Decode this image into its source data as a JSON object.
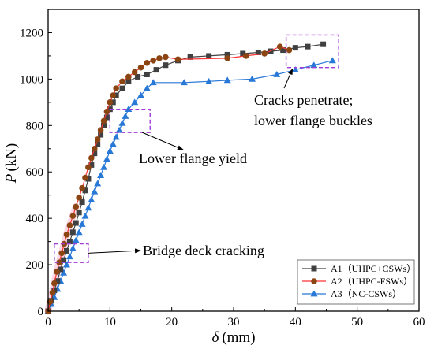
{
  "chart_data": {
    "type": "line",
    "xlabel": "δ (mm)",
    "xlabel_var": "δ",
    "xlabel_unit": "(mm)",
    "ylabel": "P (kN)",
    "ylabel_var": "P",
    "ylabel_unit": "(kN)",
    "xlim": [
      0,
      60
    ],
    "ylim": [
      0,
      1300
    ],
    "xticks": [
      0,
      10,
      20,
      30,
      40,
      50,
      60
    ],
    "yticks": [
      0,
      200,
      400,
      600,
      800,
      1000,
      1200
    ],
    "grid": false,
    "legend_position": "bottom-right",
    "series": [
      {
        "name": "A1（UHPC+CSWs）",
        "color": "#404040",
        "marker": "square",
        "x": [
          0,
          0.5,
          1.0,
          1.5,
          2.0,
          2.5,
          3.0,
          3.5,
          4.0,
          4.5,
          5.0,
          5.5,
          6.0,
          6.5,
          7.0,
          7.5,
          8.0,
          8.5,
          9.0,
          9.5,
          10.0,
          10.5,
          11.0,
          12.0,
          13.0,
          14.5,
          16.0,
          17.5,
          19.0,
          21.0,
          23.0,
          26.0,
          29.0,
          31.5,
          34.0,
          36.0,
          38.0,
          40.0,
          42.0,
          44.5
        ],
        "y": [
          0,
          45,
          90,
          130,
          180,
          220,
          260,
          300,
          340,
          380,
          425,
          470,
          520,
          570,
          630,
          680,
          720,
          760,
          800,
          835,
          870,
          900,
          930,
          960,
          990,
          1010,
          1020,
          1040,
          1060,
          1080,
          1095,
          1100,
          1105,
          1110,
          1115,
          1120,
          1125,
          1135,
          1140,
          1150
        ]
      },
      {
        "name": "A2（UHPC-FSWs）",
        "color": "#8B4513",
        "line_color": "#ff3333",
        "marker": "circle",
        "x": [
          0,
          0.3,
          0.7,
          1.0,
          1.4,
          1.8,
          2.2,
          2.6,
          3.0,
          3.5,
          4.0,
          4.5,
          5.0,
          5.5,
          6.0,
          6.5,
          7.0,
          7.5,
          8.0,
          8.5,
          9.0,
          9.5,
          10.0,
          10.5,
          11.0,
          12.0,
          13.0,
          14.0,
          15.0,
          16.0,
          17.0,
          18.0,
          19.0,
          21.0,
          29.0,
          32.0,
          35.0,
          37.5,
          39.0
        ],
        "y": [
          0,
          40,
          80,
          120,
          170,
          210,
          250,
          290,
          330,
          370,
          410,
          450,
          490,
          530,
          575,
          620,
          660,
          700,
          740,
          780,
          820,
          860,
          900,
          930,
          960,
          990,
          1010,
          1030,
          1050,
          1070,
          1080,
          1090,
          1095,
          1085,
          1090,
          1100,
          1110,
          1140,
          1125
        ]
      },
      {
        "name": "A3（NC-CSWs）",
        "color": "#2878d8",
        "marker": "triangle",
        "x": [
          0,
          0.5,
          1.0,
          1.5,
          2.0,
          2.5,
          3.0,
          3.5,
          4.0,
          4.5,
          5.0,
          5.5,
          6.0,
          6.5,
          7.0,
          7.5,
          8.0,
          8.5,
          9.0,
          9.5,
          10.0,
          10.5,
          11.0,
          11.5,
          12.0,
          12.5,
          13.0,
          14.0,
          15.0,
          16.0,
          17.0,
          22.0,
          26.0,
          29.0,
          33.0,
          37.0,
          40.0,
          43.0,
          46.0
        ],
        "y": [
          0,
          30,
          60,
          95,
          130,
          165,
          200,
          235,
          270,
          305,
          340,
          375,
          410,
          445,
          480,
          515,
          550,
          585,
          620,
          655,
          690,
          720,
          750,
          780,
          810,
          840,
          870,
          900,
          930,
          960,
          985,
          985,
          990,
          995,
          1000,
          1020,
          1040,
          1060,
          1080
        ]
      }
    ],
    "annotations": [
      {
        "lines": [
          "Cracks penetrate;",
          "lower flange buckles"
        ]
      },
      {
        "lines": [
          "Lower flange yield"
        ]
      },
      {
        "lines": [
          "Bridge deck cracking"
        ]
      }
    ],
    "annotation_boxes": [
      {
        "x0": 38.5,
        "x1": 47.0,
        "y0": 1050,
        "y1": 1190,
        "color": "#a23bd8"
      },
      {
        "x0": 10.0,
        "x1": 16.5,
        "y0": 770,
        "y1": 870,
        "color": "#a23bd8"
      },
      {
        "x0": 1.0,
        "x1": 6.5,
        "y0": 210,
        "y1": 290,
        "color": "#a23bd8"
      }
    ]
  }
}
